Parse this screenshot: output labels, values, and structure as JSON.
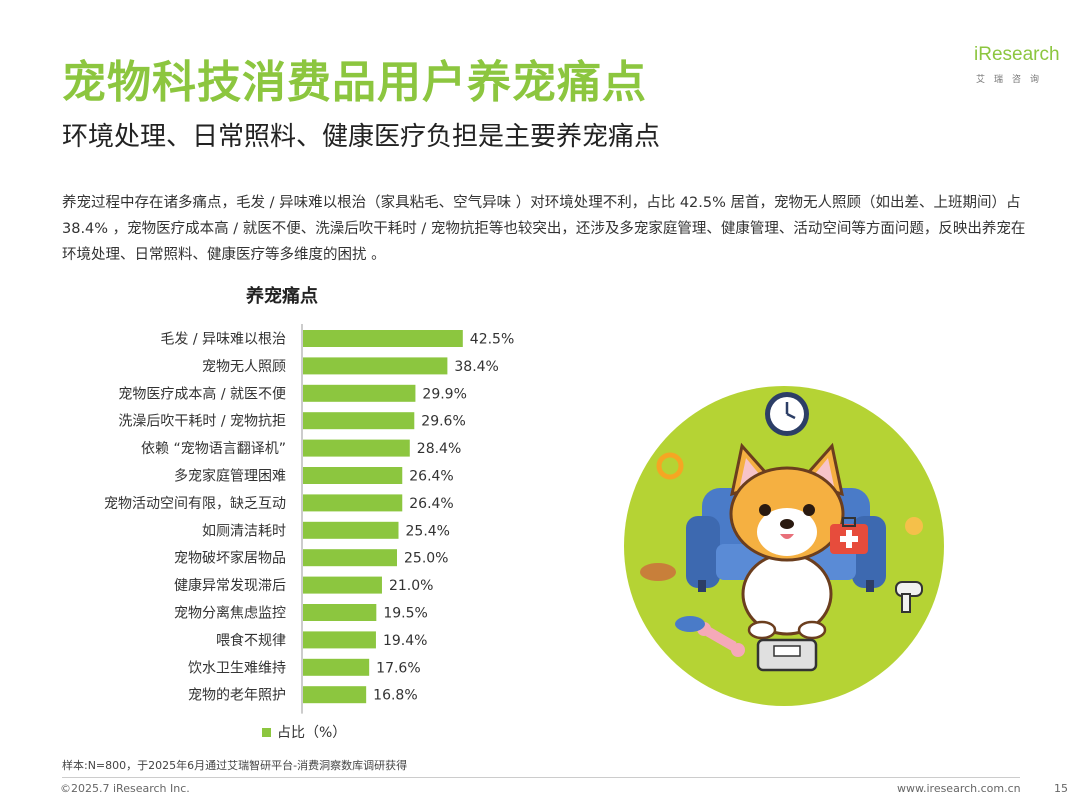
{
  "header": {
    "title": "宠物科技消费品用户养宠痛点",
    "subtitle": "环境处理、日常照料、健康医疗负担是主要养宠痛点"
  },
  "logo": {
    "main": "iResearch",
    "sub": "艾瑞咨询"
  },
  "description": "养宠过程中存在诸多痛点，毛发 / 异味难以根治（家具粘毛、空气异味 ）对环境处理不利，占比 42.5% 居首，宠物无人照顾（如出差、上班期间）占 38.4% ，宠物医疗成本高 / 就医不便、洗澡后吹干耗时 / 宠物抗拒等也较突出，还涉及多宠家庭管理、健康管理、活动空间等方面问题，反映出养宠在环境处理、日常照料、健康医疗等多维度的困扰 。",
  "chart_data": {
    "type": "bar",
    "orientation": "horizontal",
    "title": "养宠痛点",
    "categories": [
      "毛发 / 异味难以根治",
      "宠物无人照顾",
      "宠物医疗成本高 / 就医不便",
      "洗澡后吹干耗时 / 宠物抗拒",
      "依赖 “宠物语言翻译机”",
      "多宠家庭管理困难",
      "宠物活动空间有限，缺乏互动",
      "如厕清洁耗时",
      "宠物破坏家居物品",
      "健康异常发现滞后",
      "宠物分离焦虑监控",
      "喂食不规律",
      "饮水卫生难维持",
      "宠物的老年照护"
    ],
    "series": [
      {
        "name": "占比（%）",
        "values": [
          42.5,
          38.4,
          29.9,
          29.6,
          28.4,
          26.4,
          26.4,
          25.4,
          25.0,
          21.0,
          19.5,
          19.4,
          17.6,
          16.8
        ],
        "labels": [
          "42.5%",
          "38.4%",
          "29.9%",
          "29.6%",
          "28.4%",
          "26.4%",
          "26.4%",
          "25.4%",
          "25.0%",
          "21.0%",
          "19.5%",
          "19.4%",
          "17.6%",
          "16.8%"
        ]
      }
    ],
    "xlim": [
      0,
      100
    ],
    "grid": false,
    "legend": "bottom",
    "bar_color": "#8cc63f"
  },
  "legend_label": "占比（%）",
  "footer": {
    "note": "样本:N=800，于2025年6月通过艾瑞智研平台-消费洞察数库调研获得",
    "copyright": "©2025.7 iResearch Inc.",
    "website": "www.iresearch.com.cn",
    "page": "15"
  },
  "colors": {
    "accent": "#8cc63f",
    "circle": "#b5d334",
    "sofa": "#4a7bc8",
    "dog": "#f5b041"
  },
  "illustration": {
    "icons": [
      "clock-icon",
      "first-aid-kit-icon",
      "corgi-icon",
      "sofa-icon",
      "scale-icon",
      "bone-icon",
      "bowl-icon",
      "hair-dryer-icon",
      "collar-icon"
    ]
  }
}
